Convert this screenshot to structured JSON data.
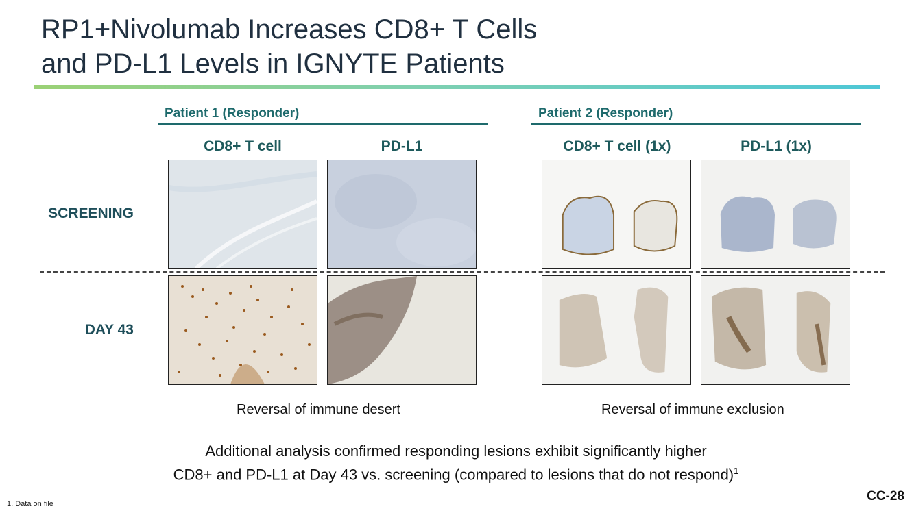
{
  "title": {
    "line1": "RP1+Nivolumab Increases CD8+ T Cells",
    "line2": "and PD-L1 Levels in IGNYTE Patients"
  },
  "patients": [
    {
      "label": "Patient 1 (Responder)",
      "columns": [
        "CD8+ T cell",
        "PD-L1"
      ],
      "caption": "Reversal of immune desert"
    },
    {
      "label": "Patient 2 (Responder)",
      "columns": [
        "CD8+ T cell (1x)",
        "PD-L1 (1x)"
      ],
      "caption": "Reversal of immune exclusion"
    }
  ],
  "rows": [
    "SCREENING",
    "DAY 43"
  ],
  "summary": {
    "line1": "Additional analysis confirmed responding lesions exhibit significantly higher",
    "line2": "CD8+ and PD-L1 at Day 43 vs. screening (compared to lesions that do not respond)",
    "superscript": "1"
  },
  "footnote": "1. Data on file",
  "slide_number": "CC-28",
  "colors": {
    "accent": "#1e6a6c",
    "title": "#203040",
    "stain_brown": "#8a5a2a",
    "stain_blue": "#b9c7dc"
  }
}
